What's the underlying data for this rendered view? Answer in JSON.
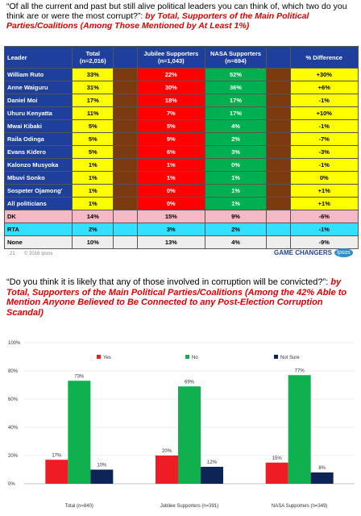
{
  "slide1": {
    "title": "“Of all the current and past but still alive political leaders you can think of, which two do you think are or were the most corrupt?”:",
    "subtitle": "by Total, Supporters of the Main Political Parties/Coalitions (Among Those Mentioned by At Least 1%)",
    "table": {
      "header": [
        "Leader",
        "Total (n=2,016)",
        "Jubilee Supporters (n=1,043)",
        "NASA Supporters (n=694)",
        "% Difference"
      ],
      "rows": [
        [
          "William Ruto",
          "33%",
          "22%",
          "52%",
          "+30%"
        ],
        [
          "Anne Waiguru",
          "31%",
          "30%",
          "36%",
          "+6%"
        ],
        [
          "Daniel Moi",
          "17%",
          "18%",
          "17%",
          "-1%"
        ],
        [
          "Uhuru Kenyatta",
          "11%",
          "7%",
          "17%",
          "+10%"
        ],
        [
          "Mwai Kibaki",
          "5%",
          "5%",
          "4%",
          "-1%"
        ],
        [
          "Raila Odinga",
          "5%",
          "9%",
          "2%",
          "-7%"
        ],
        [
          "Evans Kidero",
          "5%",
          "6%",
          "3%",
          "-3%"
        ],
        [
          "Kalonzo Musyoka",
          "1%",
          "1%",
          "0%",
          "-1%"
        ],
        [
          "Mbuvi Sonko",
          "1%",
          "1%",
          "1%",
          "0%"
        ],
        [
          "Sospeter Ojamong'",
          "1%",
          "0%",
          "1%",
          "+1%"
        ],
        [
          "All politicians",
          "1%",
          "0%",
          "1%",
          "+1%"
        ],
        [
          "DK",
          "14%",
          "15%",
          "9%",
          "-6%"
        ],
        [
          "RTA",
          "2%",
          "3%",
          "2%",
          "-1%"
        ],
        [
          "None",
          "10%",
          "13%",
          "4%",
          "-9%"
        ]
      ]
    },
    "footer": {
      "page": "21",
      "copyright": "© 2016 Ipsos",
      "tagline": "GAME CHANGERS",
      "logo": "Ipsos"
    }
  },
  "chart_data": {
    "type": "bar",
    "title": "“Do you think it is likely that any of those involved in corruption will be convicted?”:",
    "subtitle": "by Total, Supporters of the Main Political Parties/Coalitions (Among the 42% Able to Mention Anyone Believed to Be Connected to any Post-Election Corruption Scandal)",
    "categories": [
      "Total (n=840)",
      "Jubilee Supporters (n=391)",
      "NASA Supporters (n=349)"
    ],
    "series": [
      {
        "name": "Yes",
        "color": "#ee1c25",
        "values": [
          17,
          20,
          15
        ],
        "value_labels": [
          "17%",
          "20%",
          "15%"
        ]
      },
      {
        "name": "No",
        "color": "#0fb04e",
        "values": [
          73,
          69,
          77
        ],
        "value_labels": [
          "73%",
          "69%",
          "77%"
        ]
      },
      {
        "name": "Not Sure",
        "color": "#0d2556",
        "values": [
          10,
          12,
          8
        ],
        "value_labels": [
          "10%",
          "12%",
          "8%"
        ]
      }
    ],
    "ylim": [
      0,
      100
    ],
    "yticks": [
      {
        "value": 0,
        "label": "0%"
      },
      {
        "value": 20,
        "label": "20%"
      },
      {
        "value": 40,
        "label": "40%"
      },
      {
        "value": 60,
        "label": "60%"
      },
      {
        "value": 80,
        "label": "80%"
      },
      {
        "value": 100,
        "label": "100%"
      }
    ],
    "legend": "top"
  }
}
